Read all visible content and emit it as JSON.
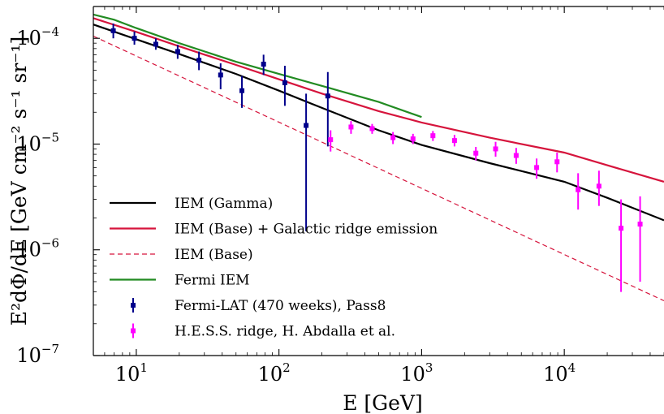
{
  "chart_data": {
    "type": "line",
    "x_scale": "log",
    "y_scale": "log",
    "xlim": [
      5,
      50000
    ],
    "ylim": [
      1e-07,
      0.0002
    ],
    "xlabel": "E [GeV]",
    "ylabel": "E²dΦ/dE [GeV cm⁻² s⁻¹ sr⁻¹]",
    "x_ticks": [
      {
        "value": 10,
        "base": "10",
        "exp": "1"
      },
      {
        "value": 100,
        "base": "10",
        "exp": "2"
      },
      {
        "value": 1000,
        "base": "10",
        "exp": "3"
      },
      {
        "value": 10000,
        "base": "10",
        "exp": "4"
      }
    ],
    "y_ticks": [
      {
        "value": 1e-07,
        "base": "10",
        "exp": "−7"
      },
      {
        "value": 1e-06,
        "base": "10",
        "exp": "−6"
      },
      {
        "value": 1e-05,
        "base": "10",
        "exp": "−5"
      },
      {
        "value": 0.0001,
        "base": "10",
        "exp": "−4"
      }
    ],
    "legend_position": "lower-left",
    "series": [
      {
        "name": "IEM (Gamma)",
        "kind": "line",
        "color": "#000000",
        "dash": "solid",
        "x": [
          5,
          10,
          20,
          50,
          100,
          200,
          500,
          1000,
          3000,
          10000,
          20000,
          50000
        ],
        "y": [
          0.000135,
          9.8e-05,
          7.1e-05,
          4.6e-05,
          3.2e-05,
          2.2e-05,
          1.35e-05,
          9.8e-06,
          6.6e-06,
          4.4e-06,
          3.1e-06,
          1.9e-06
        ]
      },
      {
        "name": "IEM (Base) + Galactic ridge emission",
        "kind": "line",
        "color": "#d6143c",
        "dash": "solid",
        "x": [
          5,
          10,
          20,
          50,
          100,
          200,
          500,
          1000,
          3000,
          10000,
          20000,
          50000
        ],
        "y": [
          0.000155,
          0.000115,
          8.4e-05,
          5.6e-05,
          4.1e-05,
          3e-05,
          2.05e-05,
          1.6e-05,
          1.15e-05,
          8.3e-06,
          6.3e-06,
          4.4e-06
        ]
      },
      {
        "name": "IEM (Base)",
        "kind": "line",
        "color": "#d6143c",
        "dash": "dashed",
        "x": [
          5,
          50000
        ],
        "y": [
          0.000105,
          3.3e-07
        ]
      },
      {
        "name": "Fermi IEM",
        "kind": "line",
        "color": "#228b22",
        "dash": "solid",
        "x": [
          5,
          7,
          10,
          20,
          50,
          100,
          200,
          500,
          1000
        ],
        "y": [
          0.000168,
          0.00015,
          0.000125,
          9e-05,
          6e-05,
          4.6e-05,
          3.55e-05,
          2.5e-05,
          1.8e-05
        ]
      },
      {
        "name": "Fermi-LAT (470 weeks), Pass8",
        "kind": "errorbar",
        "color": "#00008b",
        "x": [
          6.9,
          9.7,
          13.7,
          19.5,
          27.5,
          39,
          55,
          78,
          110,
          155,
          220
        ],
        "y": [
          0.000118,
          0.0001,
          8.8e-05,
          7.5e-05,
          6.2e-05,
          4.5e-05,
          3.2e-05,
          5.7e-05,
          3.8e-05,
          1.5e-05,
          2.85e-05
        ],
        "yerr_low": [
          0.0001,
          8.7e-05,
          7.8e-05,
          6.4e-05,
          5e-05,
          3.3e-05,
          2.2e-05,
          4.5e-05,
          2.3e-05,
          1.5e-06,
          9.5e-06
        ],
        "yerr_high": [
          0.000138,
          0.000116,
          0.0001,
          8.7e-05,
          7.5e-05,
          5.8e-05,
          4.4e-05,
          7e-05,
          5.5e-05,
          3e-05,
          4.8e-05
        ]
      },
      {
        "name": "H.E.S.S. ridge, H. Abdalla et al.",
        "kind": "errorbar",
        "color": "#ff00ff",
        "x": [
          230,
          320,
          450,
          630,
          870,
          1200,
          1700,
          2400,
          3300,
          4600,
          6400,
          8900,
          12500,
          17500,
          25000,
          34000
        ],
        "y": [
          1.1e-05,
          1.45e-05,
          1.4e-05,
          1.15e-05,
          1.12e-05,
          1.2e-05,
          1.08e-05,
          8.2e-06,
          9e-06,
          7.8e-06,
          6e-06,
          6.8e-06,
          3.7e-06,
          4e-06,
          1.6e-06,
          1.75e-06
        ],
        "yerr_low": [
          8.5e-06,
          1.25e-05,
          1.25e-05,
          1e-05,
          1e-05,
          1.07e-05,
          9.5e-06,
          7e-06,
          7.6e-06,
          6.5e-06,
          4.7e-06,
          5.4e-06,
          2.4e-06,
          2.6e-06,
          4e-07,
          5e-07
        ],
        "yerr_high": [
          1.35e-05,
          1.65e-05,
          1.55e-05,
          1.3e-05,
          1.25e-05,
          1.33e-05,
          1.22e-05,
          9.4e-06,
          1.05e-05,
          9.2e-06,
          7.3e-06,
          8.3e-06,
          5.3e-06,
          5.6e-06,
          3e-06,
          3.2e-06
        ]
      }
    ]
  }
}
